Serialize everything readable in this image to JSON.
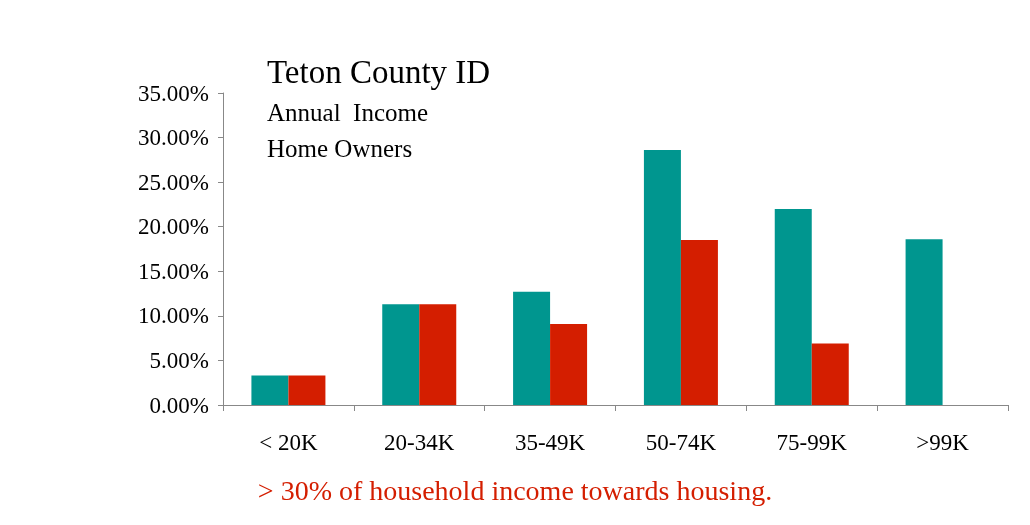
{
  "chart_data": {
    "type": "bar",
    "title": "Teton County ID",
    "subtitle": "Annual  Income\nHome Owners",
    "categories": [
      "< 20K",
      "20-34K",
      "35-49K",
      "50-74K",
      "75-99K",
      ">99K"
    ],
    "series": [
      {
        "color": "#00968f",
        "values": [
          3.3,
          11.3,
          12.7,
          28.6,
          22.0,
          18.6
        ]
      },
      {
        "color": "#d41e00",
        "values": [
          3.3,
          11.3,
          9.1,
          18.5,
          6.9,
          0
        ]
      }
    ],
    "ylim": [
      0,
      35
    ],
    "yticks": [
      {
        "value": 0,
        "label": "0.00%"
      },
      {
        "value": 5,
        "label": "5.00%"
      },
      {
        "value": 10,
        "label": "10.00%"
      },
      {
        "value": 15,
        "label": "15.00%"
      },
      {
        "value": 20,
        "label": "20.00%"
      },
      {
        "value": 25,
        "label": "25.00%"
      },
      {
        "value": 30,
        "label": "30.00%"
      },
      {
        "value": 35,
        "label": "35.00%"
      }
    ],
    "annotations": [
      "> 30% of household income towards housing."
    ],
    "grid": false
  }
}
